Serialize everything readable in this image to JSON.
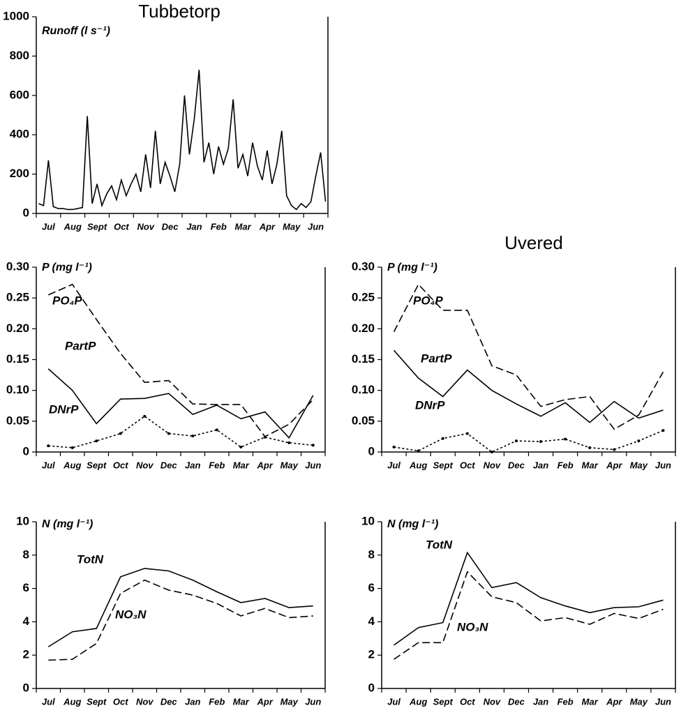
{
  "chart_data": [
    {
      "type": "line",
      "title": "Tubbetorp",
      "ylabel": "Runoff (l s⁻¹)",
      "categories": [
        null,
        null,
        "Jul",
        null,
        null,
        null,
        null,
        "Aug",
        null,
        null,
        null,
        null,
        "Sept",
        null,
        null,
        null,
        null,
        "Oct",
        null,
        null,
        null,
        null,
        "Nov",
        null,
        null,
        null,
        null,
        "Dec",
        null,
        null,
        null,
        null,
        "Jan",
        null,
        null,
        null,
        null,
        "Feb",
        null,
        null,
        null,
        null,
        "Mar",
        null,
        null,
        null,
        null,
        "Apr",
        null,
        null,
        null,
        null,
        "May",
        null,
        null,
        null,
        null,
        "Jun",
        null,
        null
      ],
      "values": [
        50,
        40,
        270,
        35,
        25,
        25,
        20,
        20,
        25,
        30,
        495,
        50,
        150,
        40,
        100,
        140,
        70,
        170,
        90,
        150,
        200,
        110,
        300,
        130,
        420,
        150,
        260,
        190,
        110,
        250,
        600,
        300,
        480,
        730,
        260,
        360,
        200,
        340,
        250,
        330,
        580,
        230,
        300,
        190,
        360,
        240,
        170,
        320,
        150,
        250,
        420,
        90,
        40,
        20,
        50,
        30,
        60,
        190,
        310,
        60
      ],
      "color": "#000000",
      "ylim": [
        0,
        1000
      ],
      "yticks": [
        0,
        200,
        400,
        600,
        800,
        1000
      ]
    },
    {
      "type": "line",
      "ylabel": "P (mg l⁻¹)",
      "categories": [
        "Jul",
        "Aug",
        "Sept",
        "Oct",
        "Nov",
        "Dec",
        "Jan",
        "Feb",
        "Mar",
        "Apr",
        "May",
        "Jun"
      ],
      "series": [
        {
          "name": "PO₄P",
          "color": "#000000",
          "linestyle": "dashed",
          "values": [
            0.255,
            0.272,
            0.215,
            0.16,
            0.113,
            0.116,
            0.078,
            0.077,
            0.077,
            0.025,
            0.045,
            0.085
          ]
        },
        {
          "name": "PartP",
          "color": "#000000",
          "linestyle": "solid",
          "values": [
            0.135,
            0.1,
            0.046,
            0.086,
            0.087,
            0.095,
            0.061,
            0.076,
            0.054,
            0.065,
            0.023,
            0.092
          ]
        },
        {
          "name": "DNrP",
          "color": "#000000",
          "linestyle": "dotted",
          "markers": true,
          "values": [
            0.01,
            0.007,
            0.018,
            0.03,
            0.058,
            0.03,
            0.026,
            0.036,
            0.008,
            0.024,
            0.015,
            0.011
          ]
        }
      ],
      "ylim": [
        0,
        0.3
      ],
      "yticks": [
        0,
        0.05,
        {
          "value": 0.1,
          "label": "0.10"
        },
        0.15,
        {
          "value": 0.2,
          "label": "0.20"
        },
        0.25,
        {
          "value": 0.3,
          "label": "0.30"
        }
      ]
    },
    {
      "type": "line",
      "title": "Uvered",
      "ylabel": "P (mg l⁻¹)",
      "categories": [
        "Jul",
        "Aug",
        "Sept",
        "Oct",
        "Nov",
        "Dec",
        "Jan",
        "Feb",
        "Mar",
        "Apr",
        "May",
        "Jun"
      ],
      "series": [
        {
          "name": "PO₄P",
          "color": "#000000",
          "linestyle": "dashed",
          "values": [
            0.195,
            0.272,
            0.23,
            0.23,
            0.14,
            0.125,
            0.074,
            0.085,
            0.09,
            0.037,
            0.06,
            0.13
          ]
        },
        {
          "name": "PartP",
          "color": "#000000",
          "linestyle": "solid",
          "values": [
            0.165,
            0.12,
            0.09,
            0.133,
            0.1,
            0.078,
            0.058,
            0.08,
            0.048,
            0.082,
            0.055,
            0.068
          ]
        },
        {
          "name": "DNrP",
          "color": "#000000",
          "linestyle": "dotted",
          "markers": true,
          "values": [
            0.008,
            0.002,
            0.022,
            0.03,
            0.0,
            0.018,
            0.017,
            0.021,
            0.007,
            0.004,
            0.018,
            0.035
          ]
        }
      ],
      "ylim": [
        0,
        0.3
      ],
      "yticks": [
        0,
        0.05,
        {
          "value": 0.1,
          "label": "0.10"
        },
        0.15,
        {
          "value": 0.2,
          "label": "0.20"
        },
        0.25,
        {
          "value": 0.3,
          "label": "0.30"
        }
      ]
    },
    {
      "type": "line",
      "ylabel": "N (mg l⁻¹)",
      "categories": [
        "Jul",
        "Aug",
        "Sept",
        "Oct",
        "Nov",
        "Dec",
        "Jan",
        "Feb",
        "Mar",
        "Apr",
        "May",
        "Jun"
      ],
      "series": [
        {
          "name": "TotN",
          "color": "#000000",
          "linestyle": "solid",
          "values": [
            2.5,
            3.4,
            3.6,
            6.7,
            7.2,
            7.05,
            6.5,
            5.8,
            5.15,
            5.4,
            4.85,
            4.95
          ]
        },
        {
          "name": "NO₃N",
          "color": "#000000",
          "linestyle": "dashed",
          "values": [
            1.7,
            1.75,
            2.7,
            5.7,
            6.5,
            5.9,
            5.6,
            5.1,
            4.35,
            4.8,
            4.25,
            4.35
          ]
        }
      ],
      "ylim": [
        0,
        10
      ],
      "yticks": [
        0,
        2,
        4,
        6,
        8,
        10
      ]
    },
    {
      "type": "line",
      "ylabel": "N (mg l⁻¹)",
      "categories": [
        "Jul",
        "Aug",
        "Sept",
        "Oct",
        "Nov",
        "Dec",
        "Jan",
        "Feb",
        "Mar",
        "Apr",
        "May",
        "Jun"
      ],
      "series": [
        {
          "name": "TotN",
          "color": "#000000",
          "linestyle": "solid",
          "values": [
            2.6,
            3.65,
            3.95,
            8.15,
            6.05,
            6.35,
            5.45,
            4.95,
            4.55,
            4.85,
            4.9,
            5.3
          ]
        },
        {
          "name": "NO₃N",
          "color": "#000000",
          "linestyle": "dashed",
          "values": [
            1.75,
            2.75,
            2.75,
            7.0,
            5.5,
            5.15,
            4.05,
            4.25,
            3.85,
            4.5,
            4.2,
            4.75
          ]
        }
      ],
      "ylim": [
        0,
        10
      ],
      "yticks": [
        0,
        2,
        4,
        6,
        8,
        10
      ]
    }
  ]
}
